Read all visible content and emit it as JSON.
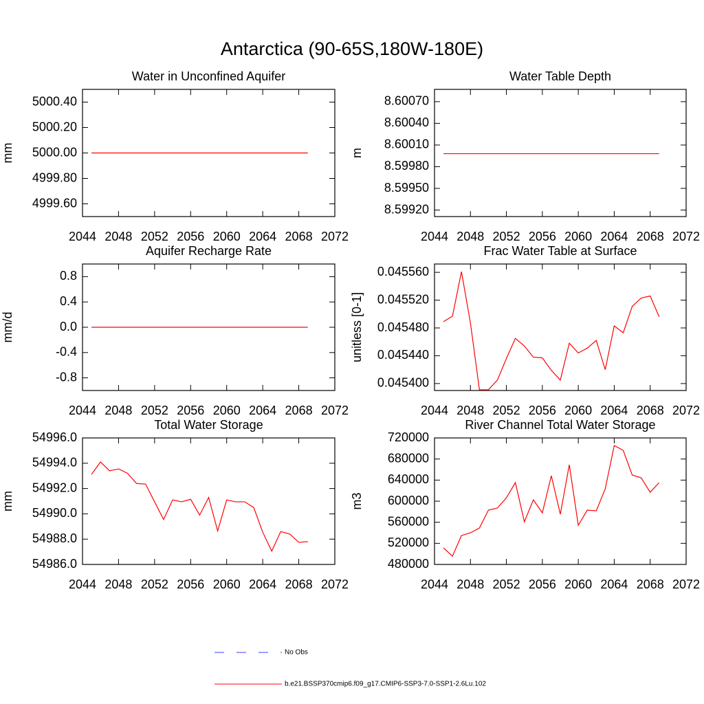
{
  "title": "Antarctica (90-65S,180W-180E)",
  "legend": [
    {
      "name": "No Obs",
      "color": "#3b3bff",
      "dashed": true
    },
    {
      "name": "b.e21.BSSP370cmip6.f09_g17.CMIP6-SSP3-7.0-SSP1-2.6Lu.102",
      "color": "#ff0000",
      "dashed": false
    }
  ],
  "chart_data": [
    {
      "type": "line",
      "title": "Water in Unconfined Aquifer",
      "y_label": "mm",
      "color": "#ff0000",
      "x": [
        2045,
        2046,
        2047,
        2048,
        2049,
        2050,
        2051,
        2052,
        2053,
        2054,
        2055,
        2056,
        2057,
        2058,
        2059,
        2060,
        2061,
        2062,
        2063,
        2064,
        2065,
        2066,
        2067,
        2068,
        2069
      ],
      "values": [
        5000,
        5000,
        5000,
        5000,
        5000,
        5000,
        5000,
        5000,
        5000,
        5000,
        5000,
        5000,
        5000,
        5000,
        5000,
        5000,
        5000,
        5000,
        5000,
        5000,
        5000,
        5000,
        5000,
        5000,
        5000
      ],
      "xlim": [
        2044,
        2072
      ],
      "xticks": [
        2044,
        2048,
        2052,
        2056,
        2060,
        2064,
        2068,
        2072
      ],
      "ylim": [
        4999.5,
        5000.5
      ],
      "yticks": [
        {
          "value": 4999.6,
          "label": "4999.60"
        },
        {
          "value": 4999.8,
          "label": "4999.80"
        },
        {
          "value": 5000,
          "label": "5000.00"
        },
        {
          "value": 5000.2,
          "label": "5000.20"
        },
        {
          "value": 5000.4,
          "label": "5000.40"
        }
      ]
    },
    {
      "type": "line",
      "title": "Water Table Depth",
      "y_label": "m",
      "color": "#ff0000",
      "x": [
        2045,
        2046,
        2047,
        2048,
        2049,
        2050,
        2051,
        2052,
        2053,
        2054,
        2055,
        2056,
        2057,
        2058,
        2059,
        2060,
        2061,
        2062,
        2063,
        2064,
        2065,
        2066,
        2067,
        2068,
        2069
      ],
      "values": [
        8.59998,
        8.59998,
        8.59998,
        8.59998,
        8.59998,
        8.59998,
        8.59998,
        8.59998,
        8.59998,
        8.59998,
        8.59998,
        8.59998,
        8.59998,
        8.59998,
        8.59998,
        8.59998,
        8.59998,
        8.59998,
        8.59998,
        8.59998,
        8.59998,
        8.59998,
        8.59998,
        8.59998,
        8.59998
      ],
      "xlim": [
        2044,
        2072
      ],
      "xticks": [
        2044,
        2048,
        2052,
        2056,
        2060,
        2064,
        2068,
        2072
      ],
      "ylim": [
        8.59911,
        8.60087
      ],
      "yticks": [
        {
          "value": 8.5992,
          "label": "8.59920"
        },
        {
          "value": 8.5995,
          "label": "8.59950"
        },
        {
          "value": 8.5998,
          "label": "8.59980"
        },
        {
          "value": 8.6001,
          "label": "8.60010"
        },
        {
          "value": 8.6004,
          "label": "8.60040"
        },
        {
          "value": 8.6007,
          "label": "8.60070"
        }
      ]
    },
    {
      "type": "line",
      "title": "Aquifer Recharge Rate",
      "y_label": "mm/d",
      "color": "#ff0000",
      "x": [
        2045,
        2046,
        2047,
        2048,
        2049,
        2050,
        2051,
        2052,
        2053,
        2054,
        2055,
        2056,
        2057,
        2058,
        2059,
        2060,
        2061,
        2062,
        2063,
        2064,
        2065,
        2066,
        2067,
        2068,
        2069
      ],
      "values": [
        0,
        0,
        0,
        0,
        0,
        0,
        0,
        0,
        0,
        0,
        0,
        0,
        0,
        0,
        0,
        0,
        0,
        0,
        0,
        0,
        0,
        0,
        0,
        0,
        0
      ],
      "xlim": [
        2044,
        2072
      ],
      "xticks": [
        2044,
        2048,
        2052,
        2056,
        2060,
        2064,
        2068,
        2072
      ],
      "ylim": [
        -1,
        1
      ],
      "yticks": [
        -0.8,
        -0.4,
        {
          "value": 0,
          "label": "0.0"
        },
        0.4,
        0.8
      ]
    },
    {
      "type": "line",
      "title": "Frac Water Table at Surface",
      "y_label": "unitless [0-1]",
      "color": "#ff0000",
      "x": [
        2045,
        2046,
        2047,
        2048,
        2049,
        2050,
        2051,
        2052,
        2053,
        2054,
        2055,
        2056,
        2057,
        2058,
        2059,
        2060,
        2061,
        2062,
        2063,
        2064,
        2065,
        2066,
        2067,
        2068,
        2069
      ],
      "values": [
        0.045489,
        0.045497,
        0.045561,
        0.045487,
        0.045391,
        0.045391,
        0.045405,
        0.045436,
        0.045465,
        0.045454,
        0.045438,
        0.045437,
        0.045419,
        0.045405,
        0.045458,
        0.045444,
        0.045451,
        0.045462,
        0.04542,
        0.045483,
        0.045473,
        0.045511,
        0.045523,
        0.045526,
        0.045496
      ],
      "xlim": [
        2044,
        2072
      ],
      "xticks": [
        2044,
        2048,
        2052,
        2056,
        2060,
        2064,
        2068,
        2072
      ],
      "ylim": [
        0.04539,
        0.045572
      ],
      "yticks": [
        {
          "value": 0.0454,
          "label": "0.045400"
        },
        {
          "value": 0.04544,
          "label": "0.045440"
        },
        {
          "value": 0.04548,
          "label": "0.045480"
        },
        {
          "value": 0.04552,
          "label": "0.045520"
        },
        {
          "value": 0.04556,
          "label": "0.045560"
        }
      ]
    },
    {
      "type": "line",
      "title": "Total Water Storage",
      "y_label": "mm",
      "color": "#ff0000",
      "x": [
        2045,
        2046,
        2047,
        2048,
        2049,
        2050,
        2051,
        2052,
        2053,
        2054,
        2055,
        2056,
        2057,
        2058,
        2059,
        2060,
        2061,
        2062,
        2063,
        2064,
        2065,
        2066,
        2067,
        2068,
        2069
      ],
      "values": [
        54993.12,
        54994.1,
        54993.4,
        54993.55,
        54993.2,
        54992.4,
        54992.35,
        54990.95,
        54989.55,
        54991.1,
        54990.95,
        54991.15,
        54989.9,
        54991.3,
        54988.65,
        54991.1,
        54990.95,
        54990.95,
        54990.5,
        54988.55,
        54987.05,
        54988.6,
        54988.4,
        54987.75,
        54987.8
      ],
      "xlim": [
        2044,
        2072
      ],
      "xticks": [
        2044,
        2048,
        2052,
        2056,
        2060,
        2064,
        2068,
        2072
      ],
      "ylim": [
        54986,
        54996
      ],
      "yticks": [
        {
          "value": 54986,
          "label": "54986.0"
        },
        {
          "value": 54988,
          "label": "54988.0"
        },
        {
          "value": 54990,
          "label": "54990.0"
        },
        {
          "value": 54992,
          "label": "54992.0"
        },
        {
          "value": 54994,
          "label": "54994.0"
        },
        {
          "value": 54996,
          "label": "54996.0"
        }
      ]
    },
    {
      "type": "line",
      "title": "River Channel Total Water Storage",
      "y_label": "m3",
      "color": "#ff0000",
      "x": [
        2045,
        2046,
        2047,
        2048,
        2049,
        2050,
        2051,
        2052,
        2053,
        2054,
        2055,
        2056,
        2057,
        2058,
        2059,
        2060,
        2061,
        2062,
        2063,
        2064,
        2065,
        2066,
        2067,
        2068,
        2069
      ],
      "values": [
        511300,
        495700,
        534800,
        540000,
        549100,
        583000,
        587000,
        606500,
        635200,
        560900,
        602600,
        577800,
        648300,
        575200,
        669100,
        554300,
        583000,
        581700,
        623500,
        705600,
        696500,
        649600,
        644300,
        617000,
        635200
      ],
      "xlim": [
        2044,
        2072
      ],
      "xticks": [
        2044,
        2048,
        2052,
        2056,
        2060,
        2064,
        2068,
        2072
      ],
      "ylim": [
        480000,
        720000
      ],
      "yticks": [
        480000,
        520000,
        560000,
        600000,
        640000,
        680000,
        720000
      ]
    }
  ]
}
